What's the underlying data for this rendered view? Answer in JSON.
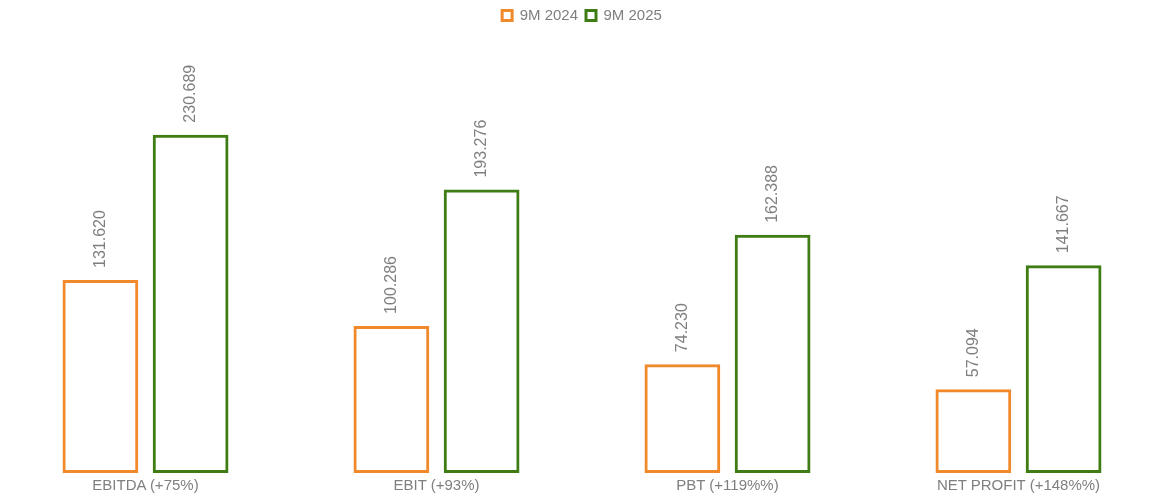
{
  "chart_data": {
    "type": "bar",
    "categories": [
      "EBITDA (+75%)",
      "EBIT (+93%)",
      "PBT (+119%%)",
      "NET PROFIT (+148%%)"
    ],
    "series": [
      {
        "name": "9M 2024",
        "color": "#f0892a",
        "values": [
          131.62,
          100.286,
          74.23,
          57.094
        ],
        "value_labels": [
          "131.620",
          "100.286",
          "74.230",
          "57.094"
        ]
      },
      {
        "name": "9M 2025",
        "color": "#3f7d14",
        "values": [
          230.689,
          193.276,
          162.388,
          141.667
        ],
        "value_labels": [
          "230.689",
          "193.276",
          "162.388",
          "141.667"
        ]
      }
    ],
    "legend": "top",
    "grid": false,
    "tick_labels": "x"
  }
}
